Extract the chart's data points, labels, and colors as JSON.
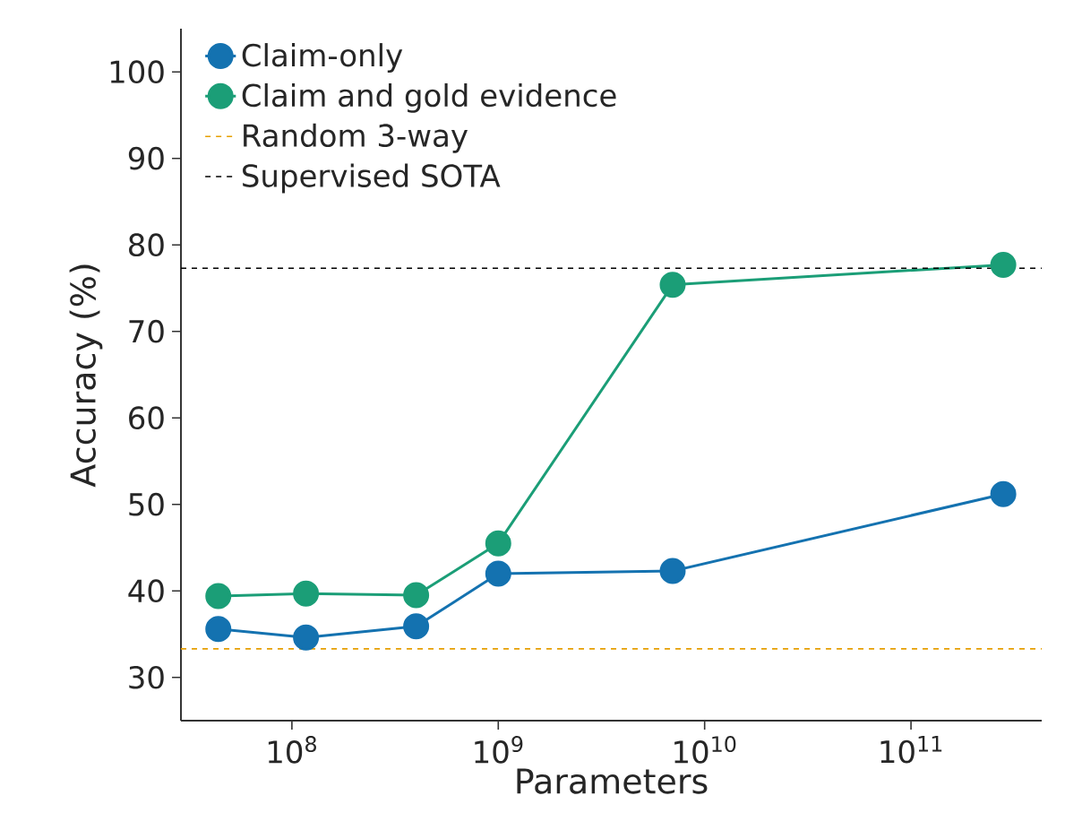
{
  "chart_data": {
    "type": "line",
    "xlabel": "Parameters",
    "ylabel": "Accuracy (%)",
    "log": "x",
    "x": [
      44000000.0,
      117000000.0,
      400000000.0,
      1000000000.0,
      7000000000.0,
      280000000000.0
    ],
    "series": [
      {
        "name": "Claim-only",
        "color": "#1472b0",
        "values": [
          35.6,
          34.6,
          35.9,
          42.0,
          42.3,
          51.2
        ]
      },
      {
        "name": "Claim and gold evidence",
        "color": "#1b9e77",
        "values": [
          39.4,
          39.7,
          39.5,
          45.5,
          75.4,
          77.7
        ]
      }
    ],
    "xlim": [
      29000000.0,
      430000000000.0
    ],
    "ylim": [
      25,
      105
    ],
    "xticks": [
      {
        "value": 100000000.0,
        "label": "10$^{8}$"
      },
      {
        "value": 1000000000.0,
        "label": "10$^{9}$"
      },
      {
        "value": 10000000000.0,
        "label": "10$^{10}$"
      },
      {
        "value": 100000000000.0,
        "label": "10$^{11}$"
      }
    ],
    "yticks": [
      30,
      40,
      50,
      60,
      70,
      80,
      90,
      100
    ],
    "ref_lines": [
      {
        "axis": "y",
        "value": 33.3,
        "label": "Random 3-way",
        "color": "#e69f00",
        "line_style": "dashed"
      },
      {
        "axis": "y",
        "value": 77.3,
        "label": "Supervised SOTA",
        "color": "#000000",
        "line_style": "dashed"
      }
    ],
    "legend": "top left",
    "marker": "circle",
    "line_style": "solid",
    "grid": false
  }
}
